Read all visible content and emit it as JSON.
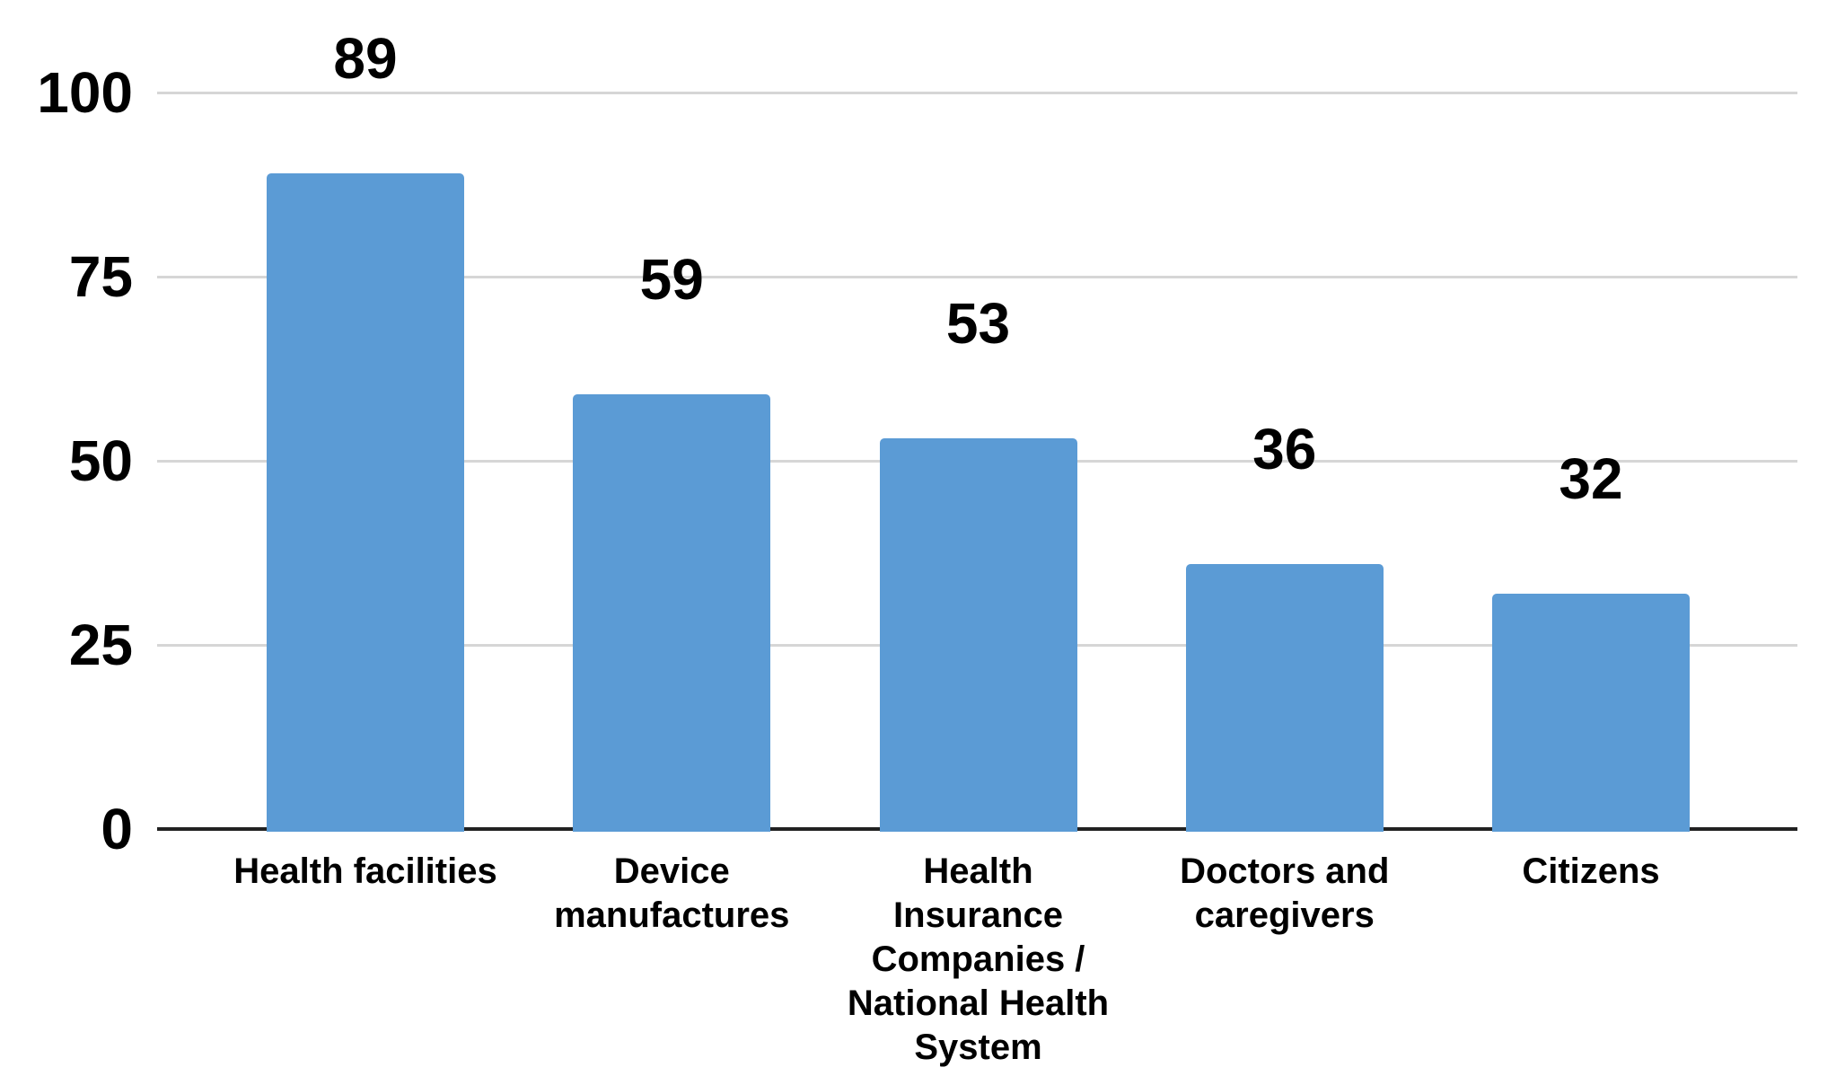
{
  "chart_data": {
    "type": "bar",
    "title": "",
    "xlabel": "",
    "ylabel": "",
    "categories": [
      "Health facilities",
      "Device manufactures",
      "Health Insurance Companies / National Health System",
      "Doctors and caregivers",
      "Citizens"
    ],
    "category_lines": [
      [
        "Health facilities"
      ],
      [
        "Device",
        "manufactures"
      ],
      [
        "Health",
        "Insurance",
        "Companies /",
        "National Health",
        "System"
      ],
      [
        "Doctors and",
        "caregivers"
      ],
      [
        "Citizens"
      ]
    ],
    "values": [
      89,
      59,
      53,
      36,
      32
    ],
    "value_labels": [
      "89",
      "59",
      "53",
      "36",
      "32"
    ],
    "ylim": [
      0,
      100
    ],
    "yticks": [
      {
        "value": 0,
        "label": "0"
      },
      {
        "value": 25,
        "label": "25"
      },
      {
        "value": 50,
        "label": "50"
      },
      {
        "value": 75,
        "label": "75"
      },
      {
        "value": 100,
        "label": "100"
      }
    ],
    "grid": true,
    "legend": "none",
    "colors": {
      "bar": "#5b9bd5",
      "gridline": "#d6d6d6",
      "axis": "#212121",
      "text": "#000000",
      "background": "#ffffff"
    }
  }
}
